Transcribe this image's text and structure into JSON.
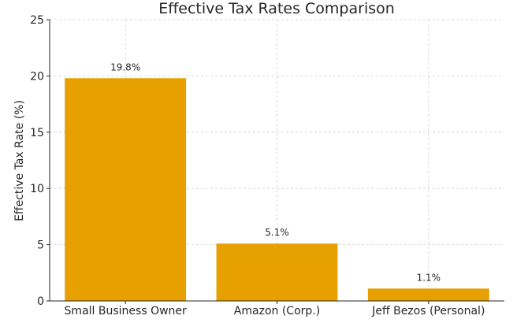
{
  "chart_data": {
    "type": "bar",
    "title": "Effective Tax Rates Comparison",
    "xlabel": "",
    "ylabel": "Effective Tax Rate (%)",
    "categories": [
      "Small Business Owner",
      "Amazon (Corp.)",
      "Jeff Bezos (Personal)"
    ],
    "values": [
      19.8,
      5.1,
      1.1
    ],
    "data_labels": [
      "19.8%",
      "5.1%",
      "1.1%"
    ],
    "ylim": [
      0,
      25
    ],
    "yticks": [
      0,
      5,
      10,
      15,
      20,
      25
    ],
    "ytick_labels": [
      "0",
      "5",
      "10",
      "15",
      "20",
      "25"
    ],
    "grid": true,
    "bar_color": "#E6A000"
  }
}
